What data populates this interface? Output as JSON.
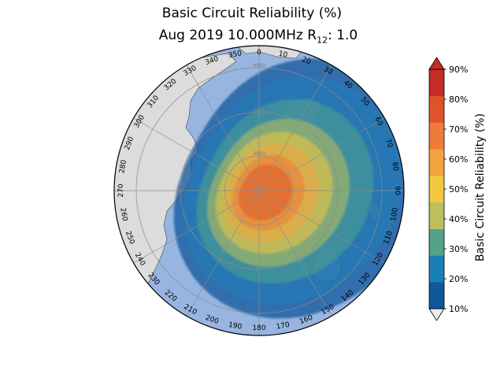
{
  "title": "Basic Circuit Reliability (%)",
  "subtitle": {
    "prefix": "Aug 2019 10.000MHz R",
    "subscript": "12",
    "suffix": ": 1.0"
  },
  "chart_data": {
    "type": "heatmap",
    "projection": "azimuthal-equidistant",
    "title": "Basic Circuit Reliability (%)",
    "subtitle": "Aug 2019 10.000MHz R12: 1.0",
    "azimuth_labels": [
      "0",
      "10",
      "20",
      "30",
      "40",
      "50",
      "60",
      "70",
      "80",
      "90",
      "100",
      "110",
      "120",
      "130",
      "140",
      "150",
      "160",
      "170",
      "180",
      "190",
      "200",
      "210",
      "220",
      "230",
      "240",
      "250",
      "260",
      "270",
      "280",
      "290",
      "300",
      "310",
      "320",
      "330",
      "340",
      "350"
    ],
    "range_ring_labels": [
      "3000",
      "6000",
      "9000"
    ],
    "colorbar": {
      "label": "Basic Circuit Reliability (%)",
      "ticks": [
        "10%",
        "20%",
        "30%",
        "40%",
        "50%",
        "60%",
        "70%",
        "80%",
        "90%"
      ],
      "levels": [
        10,
        20,
        30,
        40,
        50,
        60,
        70,
        80,
        90
      ],
      "colors": [
        "#10579c",
        "#197fb8",
        "#52a38a",
        "#bcbf5a",
        "#f1c740",
        "#f3a43e",
        "#ef7b39",
        "#e0532a",
        "#c42c26"
      ],
      "extend": "both",
      "over_color": "#c42c26",
      "under_color": "#ececec"
    },
    "colors": {
      "ocean": "#97b5e0",
      "land": "#dcdcdc",
      "coastline": "#444444",
      "grid": "#8c8c8c"
    }
  }
}
